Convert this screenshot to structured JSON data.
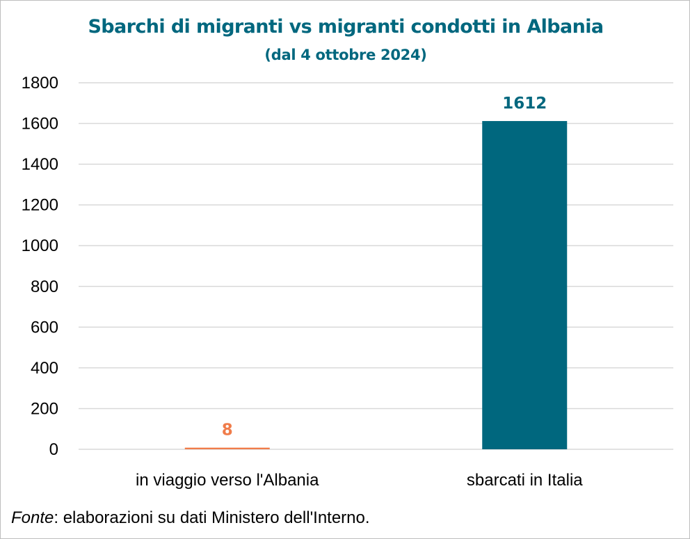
{
  "title": "Sbarchi di migranti vs migranti condotti in Albania",
  "subtitle": "(dal 4 ottobre 2024)",
  "source": {
    "label": "Fonte",
    "text": ": elaborazioni su dati Ministero dell'Interno."
  },
  "colors": {
    "title": "#00677e",
    "bar_albania": "#f07c4a",
    "bar_italia": "#00677e",
    "grid": "#d9d9d9"
  },
  "chart_data": {
    "type": "bar",
    "categories": [
      "in viaggio verso l'Albania",
      "sbarcati in Italia"
    ],
    "values": [
      8,
      1612
    ],
    "data_labels": [
      "8",
      "1612"
    ],
    "bar_colors": [
      "#f07c4a",
      "#00677e"
    ],
    "title": "Sbarchi di migranti vs migranti condotti in Albania",
    "subtitle": "(dal 4 ottobre 2024)",
    "xlabel": "",
    "ylabel": "",
    "ylim": [
      0,
      1800
    ],
    "yticks": [
      0,
      200,
      400,
      600,
      800,
      1000,
      1200,
      1400,
      1600,
      1800
    ],
    "grid": true,
    "legend": "none"
  }
}
